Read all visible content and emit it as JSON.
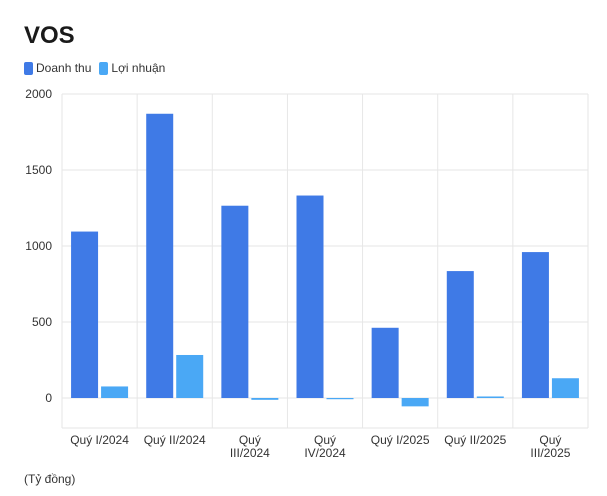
{
  "title": "VOS",
  "unit_note": "(Tỷ đồng)",
  "colors": {
    "revenue": "#3f7ae6",
    "profit": "#4aa8f5",
    "grid": "#e6e6e6"
  },
  "chart_data": {
    "type": "bar",
    "title": "VOS",
    "categories": [
      "Quý I/2024",
      "Quý II/2024",
      "Quý III/2024",
      "Quý IV/2024",
      "Quý I/2025",
      "Quý II/2025",
      "Quý III/2025"
    ],
    "category_lines": [
      [
        "Quý I/2024"
      ],
      [
        "Quý II/2024"
      ],
      [
        "Quý",
        "III/2024"
      ],
      [
        "Quý",
        "IV/2024"
      ],
      [
        "Quý I/2025"
      ],
      [
        "Quý II/2025"
      ],
      [
        "Quý",
        "III/2025"
      ]
    ],
    "series": [
      {
        "name": "Doanh thu",
        "values": [
          1095,
          1870,
          1265,
          1332,
          462,
          835,
          960
        ]
      },
      {
        "name": "Lợi nhuận",
        "values": [
          76,
          283,
          -12,
          -8,
          -55,
          10,
          130
        ]
      }
    ],
    "yticks": [
      0,
      500,
      1000,
      1500,
      2000
    ],
    "ylim": [
      -200,
      2000
    ],
    "legend_position": "top-left",
    "grid": true
  }
}
